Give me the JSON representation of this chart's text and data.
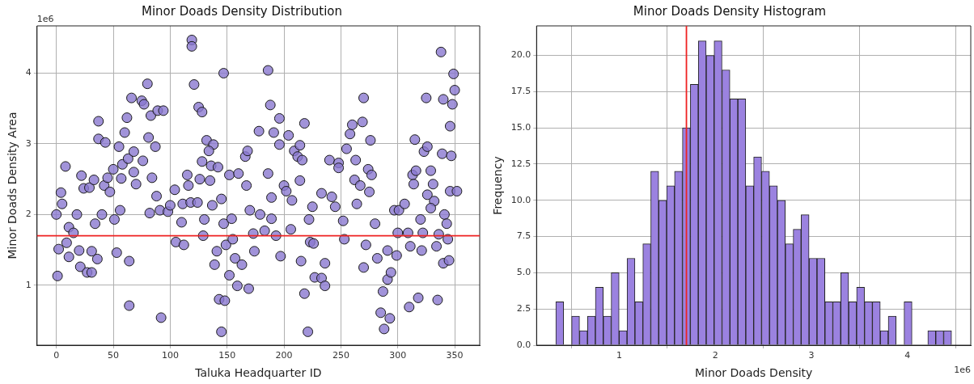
{
  "chart_data": [
    {
      "type": "scatter",
      "title": "Minor Doads Density Distribution",
      "xlabel": "Taluka Headquarter ID",
      "ylabel": "Minor Doads Density Area",
      "color": "#8a78d0",
      "marker": "circle",
      "grid": true,
      "xlim": [
        -17,
        372
      ],
      "xticks": [
        0,
        50,
        100,
        150,
        200,
        250,
        300,
        350
      ],
      "ylim": [
        0.15,
        4.67
      ],
      "yticks": [
        1,
        2,
        3,
        4
      ],
      "annotations": [
        "1e6"
      ],
      "ref_lines": [
        {
          "axis": "y",
          "value": 1.7,
          "color": "#ee2222"
        }
      ],
      "x": [
        0,
        1,
        2,
        4,
        5,
        8,
        9,
        11,
        11,
        15,
        18,
        20,
        21,
        22,
        24,
        27,
        29,
        31,
        31,
        33,
        34,
        36,
        37,
        37,
        40,
        43,
        42,
        45,
        47,
        50,
        51,
        53,
        55,
        56,
        57,
        58,
        60,
        62,
        63,
        64,
        64,
        66,
        68,
        68,
        70,
        75,
        77,
        76,
        80,
        81,
        82,
        83,
        84,
        87,
        88,
        89,
        91,
        92,
        94,
        119,
        119,
        121,
        125,
        128,
        132,
        138,
        134,
        128,
        136,
        142,
        115,
        116,
        126,
        135,
        104,
        98,
        100,
        111,
        118,
        124,
        137,
        145,
        110,
        105,
        112,
        130,
        129,
        147,
        154,
        147,
        152,
        160,
        149,
        155,
        141,
        139,
        152,
        157,
        163,
        159,
        143,
        148,
        145,
        167,
        166,
        168,
        169,
        174,
        173,
        170,
        178,
        179,
        186,
        188,
        186,
        189,
        189,
        183,
        191,
        193,
        196,
        196,
        197,
        200,
        202,
        204,
        209,
        206,
        207,
        214,
        212,
        216,
        218,
        214,
        215,
        218,
        221,
        222,
        223,
        225,
        227,
        233,
        236,
        233,
        236,
        226,
        240,
        242,
        245,
        248,
        248,
        253,
        252,
        255,
        258,
        260,
        263,
        262,
        267,
        264,
        269,
        270,
        270,
        276,
        274,
        277,
        275,
        272,
        280,
        282,
        285,
        288,
        293,
        287,
        291,
        294,
        291,
        299,
        297,
        300,
        301,
        306,
        310,
        311,
        309,
        315,
        313,
        316,
        314,
        318,
        320,
        321,
        322,
        325,
        323,
        326,
        329,
        331,
        326,
        332,
        329,
        334,
        335,
        336,
        338,
        339,
        340,
        344,
        340,
        345,
        341,
        343,
        346,
        347,
        348,
        349,
        350,
        346,
        352
      ],
      "values": [
        2.0,
        1.13,
        1.51,
        2.31,
        2.15,
        2.68,
        1.6,
        1.4,
        1.82,
        1.74,
        2.0,
        1.49,
        1.26,
        2.55,
        2.37,
        1.18,
        2.38,
        1.18,
        1.48,
        2.49,
        1.87,
        1.37,
        3.32,
        3.07,
        2.0,
        3.02,
        2.41,
        2.52,
        2.32,
        2.64,
        1.93,
        1.46,
        2.96,
        2.06,
        2.51,
        2.71,
        3.16,
        3.37,
        2.79,
        1.34,
        0.71,
        3.65,
        2.89,
        2.6,
        2.43,
        3.61,
        3.56,
        2.76,
        3.85,
        3.09,
        2.02,
        3.4,
        2.52,
        2.96,
        2.26,
        3.47,
        2.06,
        0.54,
        3.47,
        4.47,
        4.38,
        3.84,
        3.52,
        3.45,
        3.05,
        2.99,
        2.9,
        2.75,
        2.69,
        2.67,
        2.56,
        2.41,
        2.5,
        2.48,
        2.35,
        2.04,
        2.13,
        2.15,
        2.17,
        2.17,
        2.13,
        2.22,
        1.89,
        1.61,
        1.57,
        1.93,
        1.7,
        1.87,
        1.94,
        4.0,
        2.56,
        2.58,
        1.57,
        1.65,
        1.48,
        1.29,
        1.14,
        1.38,
        1.29,
        0.99,
        0.8,
        0.78,
        0.34,
        2.41,
        2.82,
        2.9,
        0.95,
        1.48,
        1.73,
        2.06,
        3.18,
        2.0,
        4.04,
        3.55,
        2.58,
        2.24,
        1.94,
        1.77,
        3.16,
        1.7,
        3.36,
        2.99,
        1.41,
        2.41,
        2.33,
        3.12,
        2.9,
        1.79,
        2.2,
        2.98,
        2.82,
        2.77,
        3.29,
        2.48,
        1.34,
        0.88,
        0.34,
        1.93,
        1.61,
        2.11,
        1.11,
        2.3,
        1.31,
        1.1,
        0.99,
        1.59,
        2.77,
        2.25,
        2.11,
        2.73,
        2.66,
        1.65,
        1.91,
        2.93,
        3.14,
        3.27,
        2.77,
        2.49,
        2.41,
        2.15,
        3.31,
        3.65,
        1.25,
        3.05,
        2.64,
        2.56,
        2.32,
        1.57,
        1.87,
        1.38,
        0.61,
        0.38,
        0.53,
        0.91,
        1.08,
        1.18,
        1.49,
        1.42,
        2.06,
        1.74,
        2.06,
        2.15,
        0.69,
        1.55,
        1.74,
        3.06,
        2.56,
        2.62,
        2.43,
        0.82,
        1.93,
        1.49,
        1.74,
        3.65,
        2.89,
        2.96,
        2.62,
        2.43,
        2.28,
        2.19,
        2.09,
        1.55,
        0.79,
        1.72,
        4.3,
        2.86,
        3.63,
        1.65,
        1.31,
        1.35,
        2.0,
        1.87,
        3.25,
        2.83,
        3.56,
        3.99,
        3.76,
        2.33,
        2.33
      ]
    },
    {
      "type": "histogram",
      "title": "Minor Doads Density Histogram",
      "xlabel": "Minor Doads Density",
      "ylabel": "Frequency",
      "color": "#9b82e0",
      "grid": true,
      "xlim": [
        0.14,
        4.66
      ],
      "xticks": [
        1,
        2,
        3,
        4
      ],
      "ylim": [
        0,
        22.04
      ],
      "yticks": [
        {
          "value": 0,
          "label": "0.0"
        },
        {
          "value": 2.5,
          "label": "2.5"
        },
        {
          "value": 5,
          "label": "5.0"
        },
        {
          "value": 7.5,
          "label": "7.5"
        },
        {
          "value": 10,
          "label": "10.0"
        },
        {
          "value": 12.5,
          "label": "12.5"
        },
        {
          "value": 15,
          "label": "15.0"
        },
        {
          "value": 17.5,
          "label": "17.5"
        },
        {
          "value": 20,
          "label": "20.0"
        }
      ],
      "annotations": [
        "1e6"
      ],
      "ref_lines": [
        {
          "axis": "x",
          "value": 1.7,
          "color": "#ee2222"
        }
      ],
      "bins": [
        0.34,
        0.422,
        0.505,
        0.587,
        0.67,
        0.752,
        0.834,
        0.917,
        0.999,
        1.082,
        1.164,
        1.246,
        1.329,
        1.411,
        1.494,
        1.576,
        1.658,
        1.741,
        1.823,
        1.906,
        1.988,
        2.07,
        2.153,
        2.235,
        2.318,
        2.4,
        2.482,
        2.565,
        2.647,
        2.73,
        2.812,
        2.894,
        2.977,
        3.059,
        3.142,
        3.224,
        3.306,
        3.389,
        3.471,
        3.554,
        3.636,
        3.718,
        3.801,
        3.883,
        3.966,
        4.048,
        4.13,
        4.213,
        4.295,
        4.378,
        4.46
      ],
      "values": [
        3,
        0,
        2,
        1,
        2,
        4,
        2,
        5,
        1,
        6,
        3,
        7,
        12,
        10,
        11,
        12,
        15,
        18,
        21,
        20,
        21,
        19,
        17,
        17,
        11,
        13,
        12,
        11,
        10,
        7,
        8,
        9,
        6,
        6,
        3,
        3,
        5,
        3,
        4,
        3,
        3,
        1,
        2,
        0,
        3,
        0,
        0,
        1,
        1,
        1
      ]
    }
  ]
}
